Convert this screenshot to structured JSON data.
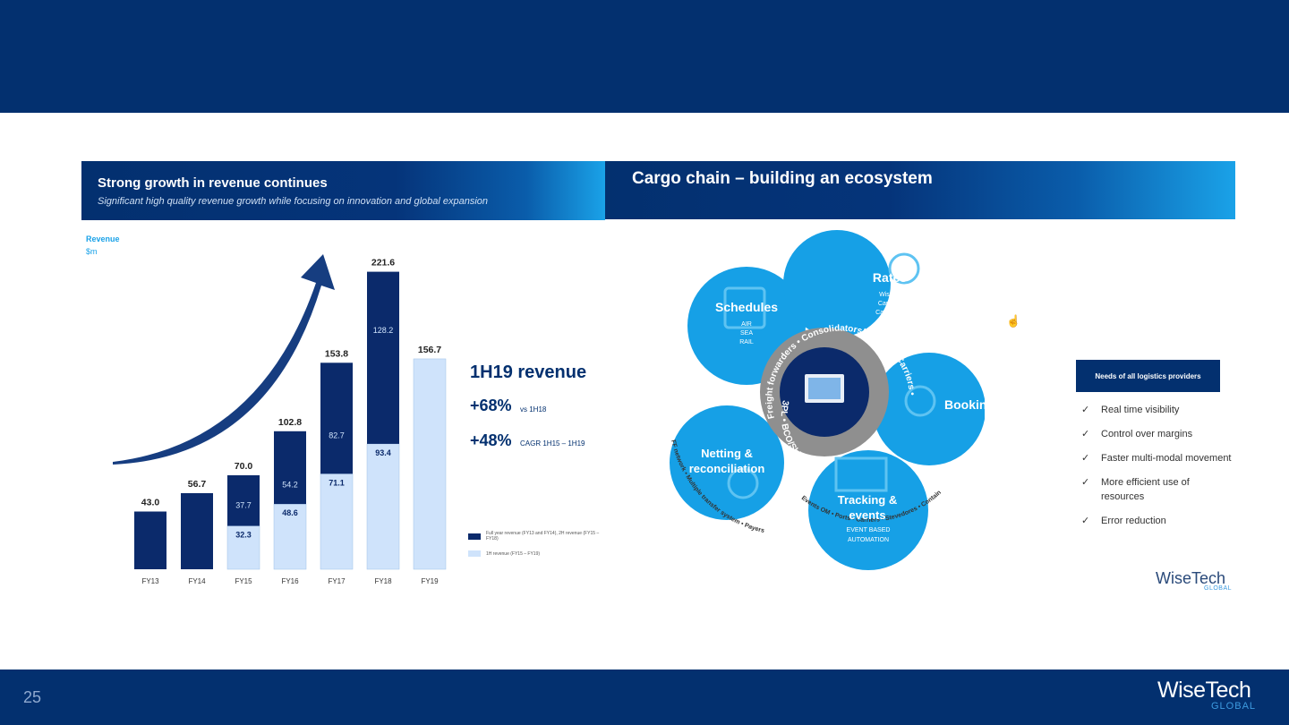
{
  "slide": {
    "page_number": "25",
    "logo": "WiseTech",
    "logo_sub": "GLOBAL"
  },
  "left_panel": {
    "title": "Strong growth in revenue continues",
    "subtitle": "Significant high quality revenue growth while focusing on innovation and global expansion",
    "y_label": "Revenue",
    "y_unit": "$m"
  },
  "chart_data": {
    "type": "bar",
    "categories": [
      "FY13",
      "FY14",
      "FY15",
      "FY16",
      "FY17",
      "FY18",
      "FY19"
    ],
    "totals": [
      43.0,
      56.7,
      70.0,
      102.8,
      153.8,
      221.6,
      156.7
    ],
    "total_labels": [
      "43.0",
      "56.7",
      "70.0",
      "102.8",
      "153.8",
      "221.6",
      "156.7"
    ],
    "series": [
      {
        "name": "1H revenue (FY15 – FY19)",
        "values": [
          null,
          null,
          32.3,
          48.6,
          71.1,
          93.4,
          156.7
        ],
        "labels": [
          "",
          "",
          "32.3",
          "48.6",
          "71.1",
          "93.4",
          ""
        ]
      },
      {
        "name": "Full year revenue (FY13 and FY14), 2H revenue (FY15 – FY18)",
        "values": [
          43.0,
          56.7,
          37.7,
          54.2,
          82.7,
          128.2,
          null
        ],
        "labels": [
          "",
          "",
          "37.7",
          "54.2",
          "82.7",
          "128.2",
          ""
        ]
      }
    ],
    "ylim": [
      0,
      230
    ],
    "grid": false,
    "colors": {
      "dark": "#0b2a6b",
      "light": "#cfe3fb",
      "arrow": "#163d80"
    }
  },
  "stats": {
    "title": "1H19 revenue",
    "growth_value": "+68%",
    "growth_note": "vs 1H18",
    "cagr_value": "+48%",
    "cagr_note": "CAGR 1H15 – 1H19"
  },
  "legend": [
    {
      "label": "Full year revenue (FY13 and FY14), 2H revenue (FY15 – FY18)",
      "color": "#0b2a6b"
    },
    {
      "label": "1H revenue (FY15 – FY19)",
      "color": "#cfe3fb"
    }
  ],
  "right_panel": {
    "title": "Cargo chain – building an ecosystem",
    "nodes": {
      "schedules": {
        "title": "Schedules",
        "items": [
          "AIR",
          "SEA",
          "RAIL"
        ]
      },
      "rates": {
        "title": "Rates",
        "items": [
          "WiseRates",
          "Cargoguide",
          "CargoSphere"
        ]
      },
      "booking": {
        "title": "Booking"
      },
      "tracking": {
        "title_line1": "Tracking &",
        "title_line2": "events",
        "items": [
          "EVENT BASED",
          "AUTOMATION"
        ]
      },
      "netting": {
        "title_line1": "Netting &",
        "title_line2": "reconciliation"
      }
    },
    "ring_text_top": "Freight forwarders • Consolidators/NVOCC • Carriers •",
    "ring_text_bottom": "3PL • BCO/Shippers •",
    "outer_text_left": "FF network • Multiple transfer system • Payers",
    "outer_text_bottom": "Events OM • Ports • Carriers • Stevedores • Container FS/yards • AIS"
  },
  "needs": {
    "title": "Needs of all logistics providers",
    "check": "✓",
    "items": [
      "Real time visibility",
      "Control over margins",
      "Faster multi-modal movement",
      "More efficient use of resources",
      "Error reduction"
    ]
  },
  "colors": {
    "navy": "#03306f",
    "cyan": "#1aa2e8",
    "circle": "#16a0e6"
  }
}
